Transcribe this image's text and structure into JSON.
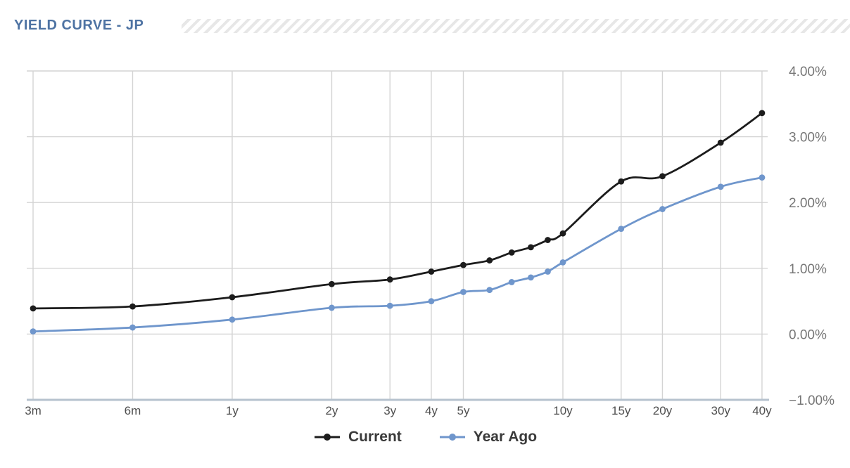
{
  "header": {
    "title": "YIELD CURVE - JP"
  },
  "colors": {
    "title": "#4e73a3",
    "hatch_stripe": "#e7e7e7",
    "grid_line": "#d4d4d4",
    "axis_line": "#b6c2ce",
    "x_label": "#4f4f4f",
    "y_label": "#767676",
    "legend_text": "#3a3a3a",
    "series_current": "#1c1c1c",
    "series_year_ago": "#6f96cc"
  },
  "chart_data": {
    "type": "line",
    "title": "YIELD CURVE - JP",
    "x_scale": "log",
    "xlabel": "",
    "ylabel": "",
    "categories": [
      "3m",
      "6m",
      "1y",
      "2y",
      "3y",
      "4y",
      "5y",
      "6y",
      "7y",
      "8y",
      "9y",
      "10y",
      "15y",
      "20y",
      "30y",
      "40y"
    ],
    "maturities_years": [
      0.25,
      0.5,
      1,
      2,
      3,
      4,
      5,
      6,
      7,
      8,
      9,
      10,
      15,
      20,
      30,
      40
    ],
    "x_tick_labels": [
      "3m",
      "6m",
      "1y",
      "2y",
      "3y",
      "4y",
      "5y",
      "10y",
      "15y",
      "20y",
      "30y",
      "40y"
    ],
    "x_tick_maturities": [
      0.25,
      0.5,
      1,
      2,
      3,
      4,
      5,
      10,
      15,
      20,
      30,
      40
    ],
    "series": [
      {
        "name": "Current",
        "color": "#1c1c1c",
        "marker": "circle",
        "values_pct": [
          0.39,
          0.42,
          0.56,
          0.76,
          0.83,
          0.95,
          1.05,
          1.12,
          1.24,
          1.32,
          1.43,
          1.53,
          2.32,
          2.4,
          2.91,
          3.36
        ]
      },
      {
        "name": "Year Ago",
        "color": "#6f96cc",
        "marker": "circle",
        "values_pct": [
          0.04,
          0.1,
          0.22,
          0.4,
          0.43,
          0.5,
          0.64,
          0.67,
          0.79,
          0.86,
          0.95,
          1.09,
          1.6,
          1.9,
          2.24,
          2.38
        ]
      }
    ],
    "y_ticks": [
      {
        "value": 4,
        "label": "4.00%"
      },
      {
        "value": 3,
        "label": "3.00%"
      },
      {
        "value": 2,
        "label": "2.00%"
      },
      {
        "value": 1,
        "label": "1.00%"
      },
      {
        "value": 0,
        "label": "0.00%"
      },
      {
        "value": -1,
        "label": "−1.00%"
      }
    ],
    "ylim": [
      -1,
      4
    ],
    "grid": true,
    "smooth_lines": true,
    "markers": true,
    "legend_position": "bottom"
  }
}
